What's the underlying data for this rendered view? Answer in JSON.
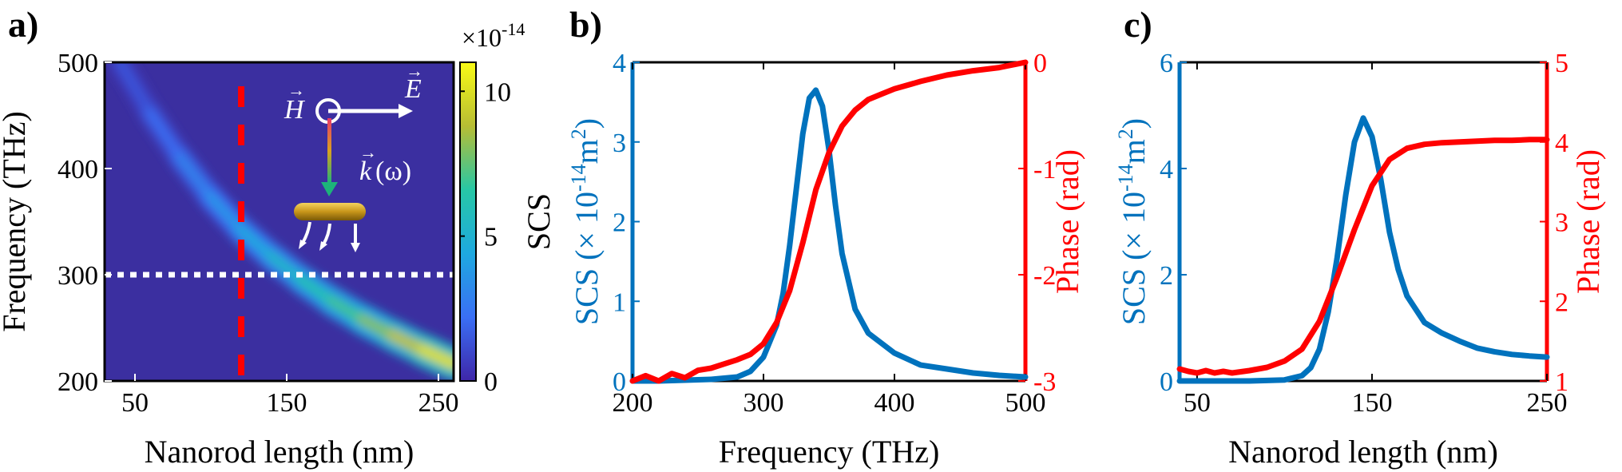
{
  "colors": {
    "blue": "#0072BD",
    "red": "#FF0000",
    "black": "#000000",
    "white": "#ffffff",
    "bg": "#3b2fa0"
  },
  "chart_data": [
    {
      "panel": "a)",
      "type": "heatmap",
      "xlabel": "Nanorod length (nm)",
      "ylabel": "Frequency (THz)",
      "xlim": [
        30,
        260
      ],
      "ylim": [
        200,
        500
      ],
      "xticks": [
        "50",
        "150",
        "250"
      ],
      "yticks": [
        "200",
        "300",
        "400",
        "500"
      ],
      "xtick_values": [
        50,
        150,
        250
      ],
      "ytick_values": [
        200,
        300,
        400,
        500
      ],
      "colorbar": {
        "label": "SCS",
        "exponent": "×10",
        "exponent_power": "-14",
        "ticks": [
          "0",
          "5",
          "10"
        ],
        "tick_values": [
          0,
          5,
          10
        ],
        "max": 11
      },
      "ridge_length_nm": [
        40,
        60,
        80,
        100,
        120,
        140,
        160,
        180,
        200,
        220,
        240,
        260
      ],
      "ridge_frequency_thz": [
        500,
        452,
        410,
        373,
        342,
        317,
        295,
        275,
        258,
        243,
        229,
        216
      ],
      "ridge_peak_scs": [
        1.5,
        2.2,
        3,
        3.8,
        4.6,
        5.4,
        6.2,
        7,
        8,
        9,
        10,
        11
      ],
      "dashed_vertical_length": 120,
      "dotted_horizontal_frequency": 300,
      "inset": {
        "H": "H",
        "E": "E",
        "k": "k",
        "omega": "(ω)"
      }
    },
    {
      "panel": "b)",
      "type": "line",
      "xlabel": "Frequency (THz)",
      "ylabel_left": "SCS (× 10",
      "ylabel_left_exp1": "-14",
      "ylabel_left_mid": "m",
      "ylabel_left_exp2": "2",
      "ylabel_left_close": ")",
      "ylabel_right": "Phase (rad)",
      "xlim": [
        200,
        500
      ],
      "ylim_left": [
        0,
        4
      ],
      "ylim_right": [
        -3,
        0
      ],
      "xticks": [
        "200",
        "300",
        "400",
        "500"
      ],
      "xtick_values": [
        200,
        300,
        400,
        500
      ],
      "yticks_left": [
        "0",
        "1",
        "2",
        "3",
        "4"
      ],
      "ytick_left_values": [
        0,
        1,
        2,
        3,
        4
      ],
      "yticks_right": [
        "-3",
        "-2",
        "-1",
        "0"
      ],
      "ytick_right_values": [
        -3,
        -2,
        -1,
        0
      ],
      "series": [
        {
          "name": "SCS",
          "axis": "left",
          "color": "#0072BD",
          "x": [
            200,
            220,
            240,
            260,
            280,
            290,
            300,
            310,
            315,
            320,
            325,
            330,
            335,
            340,
            345,
            350,
            355,
            360,
            370,
            380,
            400,
            420,
            440,
            460,
            480,
            500
          ],
          "y": [
            0,
            0,
            0.01,
            0.02,
            0.05,
            0.12,
            0.3,
            0.7,
            1.1,
            1.7,
            2.4,
            3.1,
            3.55,
            3.65,
            3.45,
            2.9,
            2.2,
            1.6,
            0.9,
            0.6,
            0.35,
            0.2,
            0.15,
            0.1,
            0.07,
            0.05
          ]
        },
        {
          "name": "Phase",
          "axis": "right",
          "color": "#FF0000",
          "x": [
            200,
            210,
            220,
            230,
            240,
            250,
            260,
            270,
            280,
            290,
            300,
            310,
            320,
            330,
            340,
            350,
            360,
            370,
            380,
            390,
            400,
            420,
            440,
            460,
            480,
            500
          ],
          "y": [
            -3.0,
            -2.95,
            -3.0,
            -2.93,
            -2.97,
            -2.9,
            -2.88,
            -2.84,
            -2.8,
            -2.75,
            -2.65,
            -2.45,
            -2.15,
            -1.7,
            -1.2,
            -0.85,
            -0.6,
            -0.45,
            -0.35,
            -0.3,
            -0.25,
            -0.18,
            -0.12,
            -0.08,
            -0.05,
            0.0
          ]
        }
      ]
    },
    {
      "panel": "c)",
      "type": "line",
      "xlabel": "Nanorod length (nm)",
      "ylabel_left": "SCS (× 10",
      "ylabel_left_exp1": "-14",
      "ylabel_left_mid": "m",
      "ylabel_left_exp2": "2",
      "ylabel_left_close": ")",
      "ylabel_right": "Phase (rad)",
      "xlim": [
        40,
        250
      ],
      "ylim_left": [
        0,
        6
      ],
      "ylim_right": [
        1,
        5
      ],
      "xticks": [
        "50",
        "150",
        "250"
      ],
      "xtick_values": [
        50,
        150,
        250
      ],
      "yticks_left": [
        "0",
        "2",
        "4",
        "6"
      ],
      "ytick_left_values": [
        0,
        2,
        4,
        6
      ],
      "yticks_right": [
        "1",
        "2",
        "3",
        "4",
        "5"
      ],
      "ytick_right_values": [
        1,
        2,
        3,
        4,
        5
      ],
      "series": [
        {
          "name": "SCS",
          "axis": "left",
          "color": "#0072BD",
          "x": [
            40,
            60,
            80,
            100,
            110,
            115,
            120,
            125,
            130,
            135,
            140,
            145,
            150,
            155,
            160,
            165,
            170,
            180,
            190,
            200,
            210,
            220,
            230,
            240,
            250
          ],
          "y": [
            0,
            0,
            0,
            0.02,
            0.1,
            0.25,
            0.6,
            1.3,
            2.3,
            3.5,
            4.5,
            4.95,
            4.6,
            3.8,
            2.8,
            2.1,
            1.6,
            1.1,
            0.9,
            0.75,
            0.62,
            0.55,
            0.5,
            0.47,
            0.45
          ]
        },
        {
          "name": "Phase",
          "axis": "right",
          "color": "#FF0000",
          "x": [
            40,
            45,
            50,
            55,
            60,
            65,
            70,
            80,
            90,
            100,
            110,
            120,
            130,
            140,
            150,
            160,
            170,
            180,
            190,
            200,
            210,
            220,
            230,
            240,
            250
          ],
          "y": [
            1.15,
            1.12,
            1.1,
            1.13,
            1.1,
            1.12,
            1.1,
            1.13,
            1.17,
            1.25,
            1.4,
            1.75,
            2.3,
            2.9,
            3.45,
            3.78,
            3.92,
            3.97,
            3.99,
            4.0,
            4.01,
            4.02,
            4.02,
            4.03,
            4.03
          ]
        }
      ]
    }
  ]
}
